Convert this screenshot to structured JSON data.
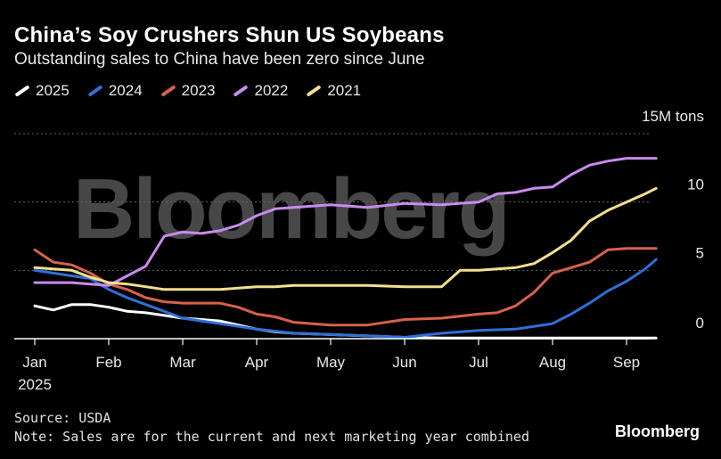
{
  "title": "China’s Soy Crushers Shun US Soybeans",
  "subtitle": "Outstanding sales to China have been zero since June",
  "watermark": "Bloomberg",
  "brand": "Bloomberg",
  "source": "Source: USDA",
  "note": "Note: Sales are for the current and next marketing year combined",
  "colors": {
    "background": "#000000",
    "s2025": "#ffffff",
    "s2024": "#2f6fd8",
    "s2023": "#d9614a",
    "s2022": "#c98aee",
    "s2021": "#f2e08c",
    "grid": "#666666"
  },
  "chart_data": {
    "type": "line",
    "title": "China’s Soy Crushers Shun US Soybeans",
    "ylabel": "15M tons",
    "ylim": [
      0,
      15
    ],
    "yticks": [
      0,
      5,
      10,
      15
    ],
    "ytick_labels": [
      "0",
      "5",
      "10",
      "15M tons"
    ],
    "xlim": [
      0,
      8.4
    ],
    "xticks": [
      0,
      1,
      2,
      3,
      4,
      5,
      6,
      7,
      8
    ],
    "xtick_labels": [
      "Jan",
      "Feb",
      "Mar",
      "Apr",
      "May",
      "Jun",
      "Jul",
      "Aug",
      "Sep"
    ],
    "xsub_label": "2025",
    "series": [
      {
        "name": "2025",
        "color_key": "s2025",
        "x": [
          0,
          0.25,
          0.5,
          0.75,
          1.0,
          1.25,
          1.5,
          1.75,
          2.0,
          2.25,
          2.5,
          2.75,
          3.0,
          3.25,
          3.5,
          4.0,
          4.5,
          5.0,
          5.5,
          6.0,
          6.5,
          7.0,
          7.5,
          8.0,
          8.4
        ],
        "values": [
          2.4,
          2.1,
          2.5,
          2.5,
          2.3,
          2.0,
          1.9,
          1.7,
          1.5,
          1.4,
          1.3,
          1.0,
          0.7,
          0.5,
          0.4,
          0.3,
          0.2,
          0.1,
          0.05,
          0.05,
          0.05,
          0.05,
          0.05,
          0.05,
          0.05
        ]
      },
      {
        "name": "2024",
        "color_key": "s2024",
        "x": [
          0,
          0.25,
          0.5,
          0.75,
          1.0,
          1.25,
          1.5,
          1.75,
          2.0,
          2.25,
          2.5,
          2.75,
          3.0,
          3.5,
          4.0,
          4.5,
          5.0,
          5.5,
          6.0,
          6.5,
          7.0,
          7.25,
          7.5,
          7.75,
          8.0,
          8.25,
          8.4
        ],
        "values": [
          5.0,
          4.8,
          4.6,
          4.4,
          3.6,
          3.0,
          2.5,
          2.0,
          1.5,
          1.3,
          1.1,
          0.9,
          0.7,
          0.4,
          0.3,
          0.2,
          0.1,
          0.4,
          0.6,
          0.7,
          1.1,
          1.8,
          2.6,
          3.5,
          4.2,
          5.1,
          5.8
        ]
      },
      {
        "name": "2023",
        "color_key": "s2023",
        "x": [
          0,
          0.25,
          0.5,
          0.75,
          1.0,
          1.25,
          1.5,
          1.75,
          2.0,
          2.25,
          2.5,
          2.75,
          3.0,
          3.25,
          3.5,
          4.0,
          4.5,
          5.0,
          5.5,
          6.0,
          6.25,
          6.5,
          6.75,
          7.0,
          7.25,
          7.5,
          7.75,
          8.0,
          8.4
        ],
        "values": [
          6.5,
          5.6,
          5.4,
          4.8,
          4.0,
          3.6,
          3.0,
          2.7,
          2.6,
          2.6,
          2.6,
          2.3,
          1.8,
          1.6,
          1.2,
          1.0,
          1.0,
          1.4,
          1.5,
          1.8,
          1.9,
          2.4,
          3.4,
          4.8,
          5.2,
          5.6,
          6.5,
          6.6,
          6.6
        ]
      },
      {
        "name": "2022",
        "color_key": "s2022",
        "x": [
          0,
          0.25,
          0.5,
          0.75,
          1.0,
          1.25,
          1.5,
          1.75,
          2.0,
          2.25,
          2.5,
          2.75,
          3.0,
          3.25,
          3.5,
          4.0,
          4.5,
          5.0,
          5.5,
          6.0,
          6.25,
          6.5,
          6.75,
          7.0,
          7.25,
          7.5,
          7.75,
          8.0,
          8.25,
          8.4
        ],
        "values": [
          4.1,
          4.1,
          4.1,
          4.0,
          3.9,
          4.6,
          5.3,
          7.5,
          7.8,
          7.7,
          7.9,
          8.3,
          9.0,
          9.5,
          9.6,
          9.8,
          9.6,
          9.9,
          9.8,
          10.0,
          10.6,
          10.7,
          11.0,
          11.1,
          12.0,
          12.7,
          13.0,
          13.2,
          13.2,
          13.2
        ]
      },
      {
        "name": "2021",
        "color_key": "s2021",
        "x": [
          0,
          0.25,
          0.5,
          0.75,
          1.0,
          1.25,
          1.5,
          1.75,
          2.0,
          2.25,
          2.5,
          2.75,
          3.0,
          3.25,
          3.5,
          4.0,
          4.5,
          5.0,
          5.25,
          5.5,
          5.75,
          6.0,
          6.25,
          6.5,
          6.75,
          7.0,
          7.25,
          7.5,
          7.75,
          8.0,
          8.25,
          8.4
        ],
        "values": [
          5.2,
          5.1,
          5.0,
          4.5,
          4.1,
          4.0,
          3.8,
          3.6,
          3.6,
          3.6,
          3.6,
          3.7,
          3.8,
          3.8,
          3.9,
          3.9,
          3.9,
          3.8,
          3.8,
          3.8,
          5.0,
          5.0,
          5.1,
          5.2,
          5.5,
          6.3,
          7.2,
          8.6,
          9.4,
          10.0,
          10.6,
          11.0
        ]
      }
    ]
  }
}
